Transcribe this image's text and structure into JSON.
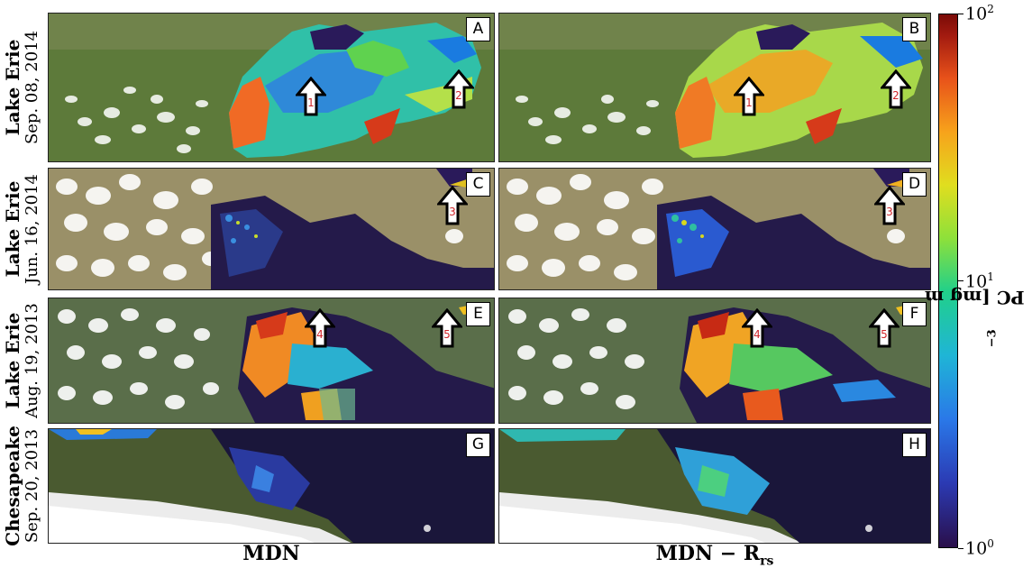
{
  "chart_data": {
    "type": "heatmap",
    "columns": [
      "MDN",
      "MDN − R",
      "rs"
    ],
    "rows": [
      {
        "site": "Lake Erie",
        "date": "Sep. 08, 2014",
        "panels": [
          "A",
          "B"
        ],
        "arrows": [
          "1",
          "2"
        ]
      },
      {
        "site": "Lake Erie",
        "date": "Jun. 16, 2014",
        "panels": [
          "C",
          "D"
        ],
        "arrows": [
          "3"
        ]
      },
      {
        "site": "Lake Erie",
        "date": "Aug. 19, 2013",
        "panels": [
          "E",
          "F"
        ],
        "arrows": [
          "4",
          "5"
        ]
      },
      {
        "site": "Chesapeake",
        "date": "Sep. 20, 2013",
        "panels": [
          "G",
          "H"
        ],
        "arrows": []
      }
    ],
    "colorbar": {
      "label": "PC [mg m",
      "label_exp": "−3",
      "label_close": "]",
      "scale": "log",
      "range": [
        1,
        100
      ],
      "ticks": [
        {
          "base": "10",
          "exp": "0",
          "value": 1
        },
        {
          "base": "10",
          "exp": "1",
          "value": 10
        },
        {
          "base": "10",
          "exp": "2",
          "value": 100
        }
      ],
      "colormap": "turbo"
    }
  }
}
